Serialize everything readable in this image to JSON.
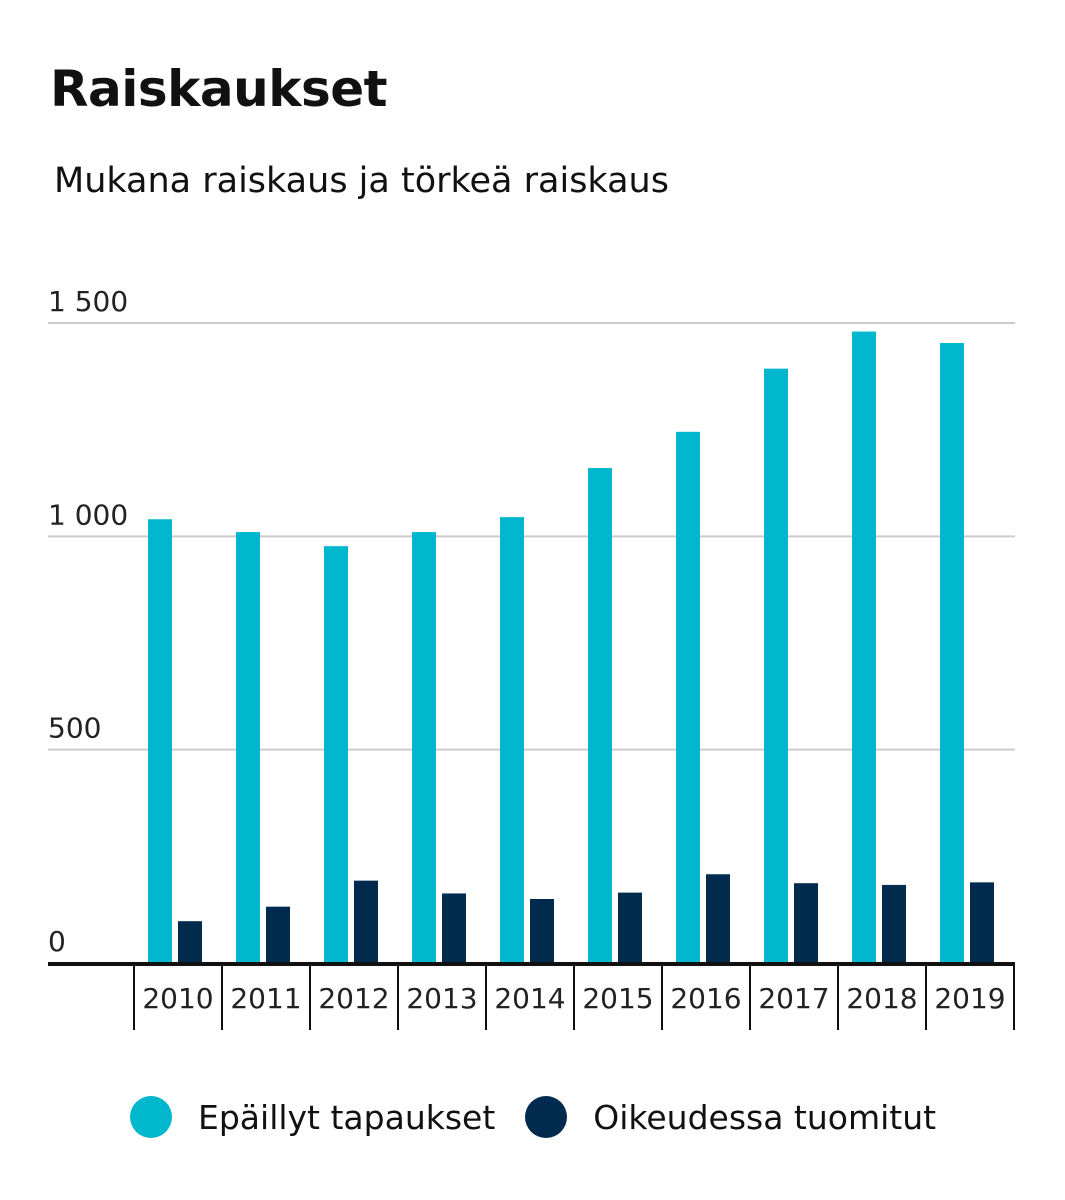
{
  "header": {
    "title": "Raiskaukset",
    "subtitle": "Mukana raiskaus ja törkeä raiskaus"
  },
  "colors": {
    "suspected": "#00b7ce",
    "convicted": "#002a4e",
    "grid": "#cccccc",
    "axis": "#111111"
  },
  "chart_data": {
    "type": "bar",
    "title": "Raiskaukset",
    "subtitle": "Mukana raiskaus ja törkeä raiskaus",
    "categories": [
      "2010",
      "2011",
      "2012",
      "2013",
      "2014",
      "2015",
      "2016",
      "2017",
      "2018",
      "2019"
    ],
    "series": [
      {
        "name": "Epäillyt tapaukset",
        "values": [
          1040,
          1010,
          977,
          1010,
          1045,
          1160,
          1245,
          1393,
          1480,
          1453
        ]
      },
      {
        "name": "Oikeudessa tuomitut",
        "values": [
          98,
          132,
          193,
          163,
          150,
          165,
          208,
          187,
          183,
          189
        ]
      }
    ],
    "yticks": [
      0,
      500,
      1000,
      1500
    ],
    "ytick_labels": [
      "0",
      "500",
      "1 000",
      "1 500"
    ],
    "ylim": [
      0,
      1500
    ],
    "grid": true,
    "legend": "bottom"
  },
  "legend": {
    "items": [
      {
        "label": "Epäillyt tapaukset"
      },
      {
        "label": "Oikeudessa tuomitut"
      }
    ]
  }
}
